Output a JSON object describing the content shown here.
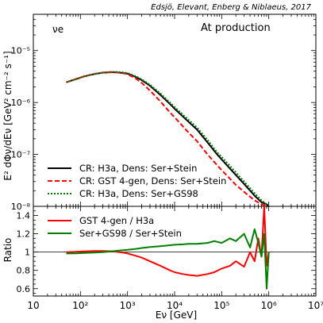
{
  "chart_data": [
    {
      "type": "line",
      "panel": "top",
      "title": "Edsjö, Elevant, Enberg & Niblaeus, 2017",
      "flavor_label": "νe",
      "annotation": "At production",
      "ylabel": "E² dΦν/dEν [GeV² cm⁻² s⁻¹]",
      "xlabel": "",
      "x_scale": "log",
      "y_scale": "log",
      "xlim": [
        10,
        10000000
      ],
      "ylim": [
        1e-08,
        5e-05
      ],
      "x_ticks": [
        "10",
        "10²",
        "10³",
        "10⁴",
        "10⁵",
        "10⁶",
        "10⁷"
      ],
      "y_ticks": [
        "10⁻⁸",
        "10⁻⁷",
        "10⁻⁶",
        "10⁻⁵"
      ],
      "legend_position": "lower-left",
      "series": [
        {
          "name": "CR: H3a, Dens: Ser+Stein",
          "color": "#000000",
          "style": "solid",
          "x": [
            50,
            80,
            120,
            200,
            300,
            450,
            600,
            800,
            1000,
            1500,
            2000,
            3000,
            5000,
            8000,
            10000,
            20000,
            30000,
            50000,
            80000,
            100000,
            200000,
            300000,
            500000,
            700000,
            900000,
            1000000
          ],
          "y": [
            2.45e-06,
            2.82e-06,
            3.18e-06,
            3.55e-06,
            3.75e-06,
            3.83e-06,
            3.8e-06,
            3.7e-06,
            3.6e-06,
            3.1e-06,
            2.7e-06,
            2.1e-06,
            1.4e-06,
            9.3e-07,
            7.6e-07,
            4.2e-07,
            3e-07,
            1.7e-07,
            1e-07,
            8e-08,
            4e-08,
            2.7e-08,
            1.6e-08,
            1.2e-08,
            1.1e-08,
            1e-08
          ]
        },
        {
          "name": "CR: GST 4-gen, Dens: Ser+Stein",
          "color": "#ff0000",
          "style": "dashed",
          "x": [
            50,
            80,
            120,
            200,
            300,
            450,
            600,
            800,
            1000,
            1500,
            2000,
            3000,
            5000,
            8000,
            10000,
            20000,
            30000,
            50000,
            80000,
            100000,
            200000,
            300000,
            500000,
            700000,
            900000,
            1000000
          ],
          "y": [
            2.45e-06,
            2.83e-06,
            3.2e-06,
            3.57e-06,
            3.77e-06,
            3.85e-06,
            3.8e-06,
            3.67e-06,
            3.5e-06,
            2.9e-06,
            2.4e-06,
            1.7e-06,
            1.05e-06,
            6.4e-07,
            5.2e-07,
            2.6e-07,
            1.8e-07,
            1e-07,
            6.2e-08,
            5e-08,
            2.6e-08,
            1.9e-08,
            1.3e-08,
            1.1e-08,
            1e-08,
            1e-08
          ]
        },
        {
          "name": "CR: H3a, Dens: Ser+GS98",
          "color": "#008000",
          "style": "dotted",
          "x": [
            50,
            80,
            120,
            200,
            300,
            450,
            600,
            800,
            1000,
            1500,
            2000,
            3000,
            5000,
            8000,
            10000,
            20000,
            30000,
            50000,
            80000,
            100000,
            200000,
            300000,
            500000,
            700000,
            900000,
            1000000
          ],
          "y": [
            2.43e-06,
            2.8e-06,
            3.17e-06,
            3.56e-06,
            3.78e-06,
            3.89e-06,
            3.88e-06,
            3.8e-06,
            3.7e-06,
            3.2e-06,
            2.8e-06,
            2.2e-06,
            1.5e-06,
            9.9e-07,
            8.2e-07,
            4.6e-07,
            3.3e-07,
            1.9e-07,
            1.1e-07,
            9e-08,
            4.5e-08,
            3e-08,
            1.8e-08,
            1.3e-08,
            1.1e-08,
            1e-08
          ]
        }
      ]
    },
    {
      "type": "line",
      "panel": "bottom",
      "xlabel": "Eν [GeV]",
      "ylabel": "Ratio",
      "x_scale": "log",
      "y_scale": "linear",
      "xlim": [
        10,
        10000000
      ],
      "ylim": [
        0.52,
        1.5
      ],
      "x_ticks": [
        "10",
        "10²",
        "10³",
        "10⁴",
        "10⁵",
        "10⁶",
        "10⁷"
      ],
      "y_ticks": [
        "0.6",
        "0.8",
        "1",
        "1.2",
        "1.4"
      ],
      "reference_line": 1,
      "legend_position": "top-left",
      "series": [
        {
          "name": "GST 4-gen / H3a",
          "color": "#ff0000",
          "style": "solid",
          "x": [
            50,
            80,
            120,
            200,
            300,
            500,
            800,
            1000,
            1500,
            2000,
            3000,
            5000,
            8000,
            10000,
            15000,
            20000,
            30000,
            50000,
            70000,
            100000,
            150000,
            200000,
            300000,
            400000,
            500000,
            600000,
            700000,
            800000,
            900000,
            1000000
          ],
          "y": [
            1.0,
            1.003,
            1.008,
            1.012,
            1.013,
            1.008,
            0.995,
            0.985,
            0.96,
            0.94,
            0.9,
            0.85,
            0.8,
            0.78,
            0.76,
            0.75,
            0.74,
            0.76,
            0.78,
            0.82,
            0.85,
            0.9,
            0.84,
            1.0,
            0.9,
            1.15,
            0.95,
            1.5,
            0.85,
            1.0
          ]
        },
        {
          "name": "Ser+GS98 / Ser+Stein",
          "color": "#008000",
          "style": "solid",
          "x": [
            50,
            80,
            120,
            200,
            300,
            500,
            800,
            1000,
            1500,
            2000,
            3000,
            5000,
            8000,
            10000,
            15000,
            20000,
            30000,
            50000,
            70000,
            100000,
            150000,
            200000,
            300000,
            400000,
            500000,
            600000,
            700000,
            800000,
            900000,
            1000000
          ],
          "y": [
            0.985,
            0.987,
            0.99,
            0.995,
            1.0,
            1.01,
            1.02,
            1.025,
            1.035,
            1.045,
            1.055,
            1.065,
            1.075,
            1.08,
            1.085,
            1.09,
            1.09,
            1.1,
            1.12,
            1.1,
            1.15,
            1.12,
            1.2,
            1.05,
            1.25,
            1.1,
            0.95,
            1.2,
            0.6,
            1.0
          ]
        }
      ]
    }
  ]
}
